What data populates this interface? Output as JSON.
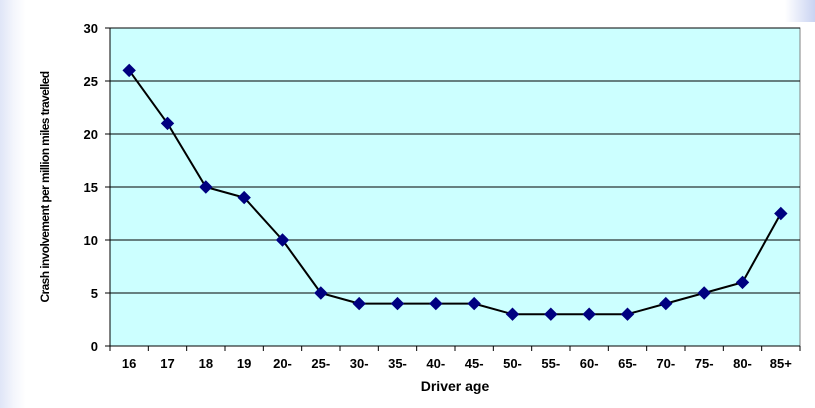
{
  "chart_data": {
    "type": "line",
    "title": "",
    "xlabel": "Driver age",
    "ylabel": "Crash involvement per million miles travelled",
    "categories": [
      "16",
      "17",
      "18",
      "19",
      "20-",
      "25-",
      "30-",
      "35-",
      "40-",
      "45-",
      "50-",
      "55-",
      "60-",
      "65-",
      "70-",
      "75-",
      "80-",
      "85+"
    ],
    "series": [
      {
        "values": [
          26,
          21,
          15,
          14,
          10,
          5,
          4,
          4,
          4,
          4,
          3,
          3,
          3,
          3,
          4,
          5,
          6,
          12.5
        ]
      }
    ],
    "ylim": [
      0,
      30
    ],
    "yticks": [
      0,
      5,
      10,
      15,
      20,
      25,
      30
    ],
    "grid": true,
    "legend": "none",
    "colors": {
      "plot_background": "#ccffff",
      "line": "#000000",
      "marker": "#000080",
      "gridline": "#000000"
    }
  }
}
